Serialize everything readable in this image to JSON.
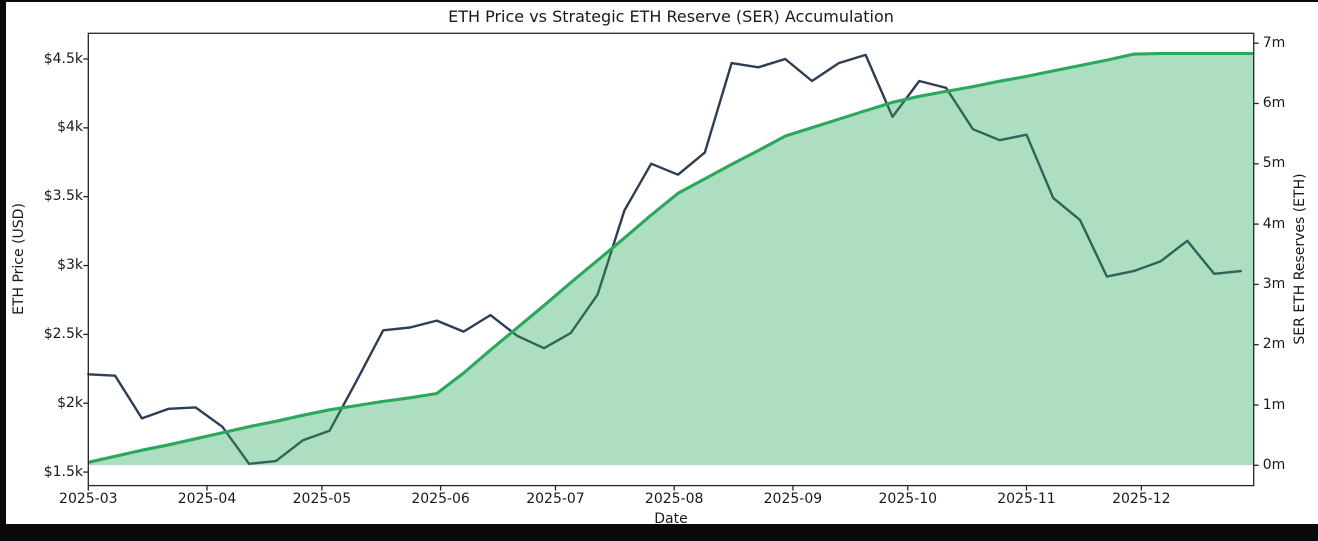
{
  "figure": {
    "title": "ETH Price vs Strategic ETH Reserve (SER) Accumulation",
    "xlabel": "Date",
    "ylabel_left": "ETH Price (USD)",
    "ylabel_right": "SER ETH Reserves (ETH)"
  },
  "chart_data": {
    "type": "line",
    "title": "ETH Price vs Strategic ETH Reserve (SER) Accumulation",
    "xlabel": "Date",
    "x_range": [
      "2025-03-01",
      "2025-12-30"
    ],
    "x_ticks": [
      "2025-03",
      "2025-04",
      "2025-05",
      "2025-06",
      "2025-07",
      "2025-08",
      "2025-09",
      "2025-10",
      "2025-11",
      "2025-12"
    ],
    "x": [
      "2025-03-01",
      "2025-03-08",
      "2025-03-15",
      "2025-03-22",
      "2025-03-29",
      "2025-04-05",
      "2025-04-12",
      "2025-04-19",
      "2025-04-26",
      "2025-05-03",
      "2025-05-10",
      "2025-05-17",
      "2025-05-24",
      "2025-05-31",
      "2025-06-07",
      "2025-06-14",
      "2025-06-21",
      "2025-06-28",
      "2025-07-05",
      "2025-07-12",
      "2025-07-19",
      "2025-07-26",
      "2025-08-02",
      "2025-08-09",
      "2025-08-16",
      "2025-08-23",
      "2025-08-30",
      "2025-09-06",
      "2025-09-13",
      "2025-09-20",
      "2025-09-27",
      "2025-10-04",
      "2025-10-11",
      "2025-10-18",
      "2025-10-25",
      "2025-11-01",
      "2025-11-08",
      "2025-11-15",
      "2025-11-22",
      "2025-11-29",
      "2025-12-06",
      "2025-12-13",
      "2025-12-20",
      "2025-12-27"
    ],
    "series": [
      {
        "name": "ETH Price (USD)",
        "axis": "left",
        "style": "line",
        "color": "#2d3e54",
        "unit": "k USD",
        "values": [
          2.21,
          2.2,
          1.89,
          1.96,
          1.97,
          1.83,
          1.56,
          1.58,
          1.73,
          1.8,
          2.16,
          2.53,
          2.55,
          2.6,
          2.52,
          2.64,
          2.49,
          2.4,
          2.51,
          2.79,
          3.4,
          3.74,
          3.66,
          3.82,
          4.47,
          4.44,
          4.5,
          4.34,
          4.47,
          4.53,
          4.08,
          4.34,
          4.29,
          3.99,
          3.91,
          3.95,
          3.49,
          3.33,
          2.92,
          2.96,
          3.03,
          3.18,
          2.94,
          2.96
        ]
      },
      {
        "name": "SER ETH Reserves (ETH)",
        "axis": "right",
        "style": "area",
        "color": "#2aa95c",
        "fill_opacity": 0.38,
        "unit": "million ETH",
        "values": [
          0.05,
          0.15,
          0.25,
          0.34,
          0.44,
          0.54,
          0.64,
          0.73,
          0.83,
          0.92,
          0.99,
          1.06,
          1.12,
          1.19,
          1.53,
          1.91,
          2.28,
          2.65,
          3.03,
          3.4,
          3.77,
          4.15,
          4.51,
          4.75,
          4.99,
          5.22,
          5.46,
          5.6,
          5.74,
          5.88,
          6.02,
          6.12,
          6.2,
          6.28,
          6.37,
          6.45,
          6.54,
          6.63,
          6.72,
          6.82,
          6.83,
          6.83,
          6.83,
          6.83
        ]
      }
    ],
    "y_left": {
      "label": "ETH Price (USD)",
      "ticks": [
        "$1.5k",
        "$2k",
        "$2.5k",
        "$3k",
        "$3.5k",
        "$4k",
        "$4.5k"
      ],
      "tick_values": [
        1.5,
        2.0,
        2.5,
        3.0,
        3.5,
        4.0,
        4.5
      ],
      "range": [
        1.4,
        4.69
      ]
    },
    "y_right": {
      "label": "SER ETH Reserves (ETH)",
      "ticks": [
        "0m",
        "1m",
        "2m",
        "3m",
        "4m",
        "5m",
        "6m",
        "7m"
      ],
      "tick_values": [
        0,
        1,
        2,
        3,
        4,
        5,
        6,
        7
      ],
      "range": [
        -0.34,
        7.17
      ]
    },
    "grid": false,
    "legend": "none"
  },
  "style": {
    "background": "#ffffff",
    "canvas_edge": "#0a0a0a",
    "spine_color": "#262626",
    "text_color": "#1a1a1a",
    "price_line_color": "#2d3e54",
    "reserve_line_color": "#2aa95c"
  }
}
